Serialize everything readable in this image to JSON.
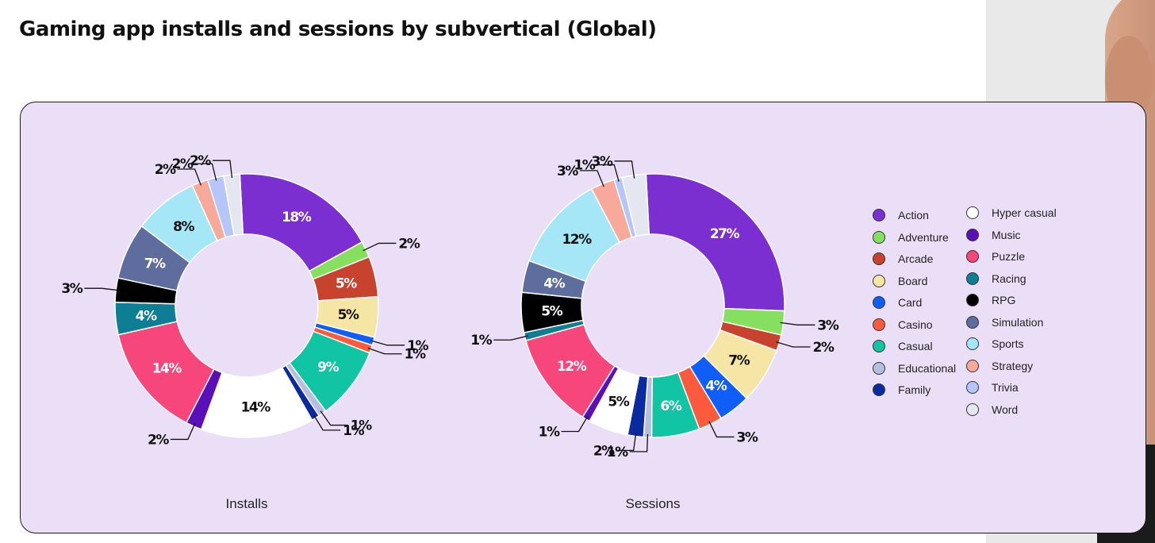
{
  "page": {
    "title": "Gaming app installs and sessions by subvertical (Global)"
  },
  "categories": [
    {
      "name": "Action",
      "color": "#7b2fd0"
    },
    {
      "name": "Adventure",
      "color": "#86e060"
    },
    {
      "name": "Arcade",
      "color": "#c8432e"
    },
    {
      "name": "Board",
      "color": "#f5e6a6"
    },
    {
      "name": "Card",
      "color": "#0f5ef7"
    },
    {
      "name": "Casino",
      "color": "#fb5a3c"
    },
    {
      "name": "Casual",
      "color": "#11c4a4"
    },
    {
      "name": "Educational",
      "color": "#b8bedf"
    },
    {
      "name": "Family",
      "color": "#0a2aa0"
    },
    {
      "name": "Hyper casual",
      "color": "#ffffff"
    },
    {
      "name": "Music",
      "color": "#5a10b8"
    },
    {
      "name": "Puzzle",
      "color": "#f6467b"
    },
    {
      "name": "Racing",
      "color": "#0d7e93"
    },
    {
      "name": "RPG",
      "color": "#000000"
    },
    {
      "name": "Simulation",
      "color": "#5e6d9e"
    },
    {
      "name": "Sports",
      "color": "#a5e7f7"
    },
    {
      "name": "Strategy",
      "color": "#f8aa9a"
    },
    {
      "name": "Trivia",
      "color": "#b4c6fa"
    },
    {
      "name": "Word",
      "color": "#e4e7f0"
    }
  ],
  "chart_data": [
    {
      "type": "pie",
      "title": "Installs",
      "labels": [
        "Action",
        "Adventure",
        "Arcade",
        "Board",
        "Card",
        "Casino",
        "Casual",
        "Educational",
        "Family",
        "Hyper casual",
        "Music",
        "Puzzle",
        "Racing",
        "RPG",
        "Simulation",
        "Sports",
        "Strategy",
        "Trivia",
        "Word"
      ],
      "values": [
        18,
        2,
        5,
        5,
        1,
        1,
        9,
        1,
        1,
        14,
        2,
        14,
        4,
        3,
        7,
        8,
        2,
        2,
        2
      ],
      "value_labels": [
        "18%",
        "2%",
        "5%",
        "5%",
        "1%",
        "1%",
        "9%",
        "1%",
        "1%",
        "14%",
        "2%",
        "14%",
        "4%",
        "3%",
        "7%",
        "8%",
        "2%",
        "2%",
        "2%"
      ]
    },
    {
      "type": "pie",
      "title": "Sessions",
      "labels": [
        "Action",
        "Adventure",
        "Arcade",
        "Board",
        "Card",
        "Casino",
        "Casual",
        "Educational",
        "Family",
        "Hyper casual",
        "Music",
        "Puzzle",
        "Racing",
        "RPG",
        "Simulation",
        "Sports",
        "Strategy",
        "Trivia",
        "Word"
      ],
      "values": [
        27,
        3,
        2,
        7,
        4,
        3,
        6,
        1,
        2,
        5,
        1,
        12,
        1,
        5,
        4,
        12,
        3,
        1,
        3
      ],
      "value_labels": [
        "27%",
        "3%",
        "2%",
        "7%",
        "4%",
        "3%",
        "6%",
        "1%",
        "2%",
        "5%",
        "1%",
        "12%",
        "1%",
        "5%",
        "4%",
        "12%",
        "3%",
        "1%",
        "3%"
      ]
    }
  ]
}
